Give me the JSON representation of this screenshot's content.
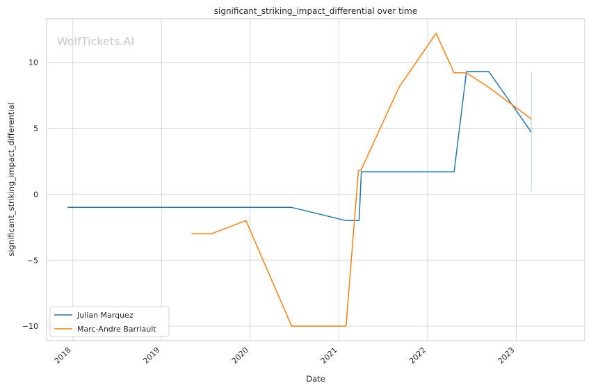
{
  "chart_data": {
    "type": "line",
    "title": "significant_striking_impact_differential over time",
    "xlabel": "Date",
    "ylabel": "significant_striking_impact_differential",
    "watermark": "WolfTickets.AI",
    "xlim": [
      "2017-09-15",
      "2023-10-10"
    ],
    "ylim": [
      -11.1,
      13.3
    ],
    "x_ticks": [
      "2018-01-01",
      "2019-01-01",
      "2020-01-01",
      "2021-01-01",
      "2022-01-01",
      "2023-01-01"
    ],
    "x_tick_labels": [
      "2018",
      "2019",
      "2020",
      "2021",
      "2022",
      "2023"
    ],
    "y_ticks": [
      -10,
      -5,
      0,
      5,
      10
    ],
    "y_tick_labels": [
      "−10",
      "−5",
      "0",
      "5",
      "10"
    ],
    "grid": true,
    "legend_position": "lower-left",
    "series": [
      {
        "name": "Julian Marquez",
        "color": "#1f77b4",
        "x": [
          "2017-12-10",
          "2020-06-20",
          "2021-01-30",
          "2021-03-25",
          "2021-04-03",
          "2022-04-20",
          "2022-06-10",
          "2022-09-10",
          "2023-03-04"
        ],
        "y": [
          -1.0,
          -1.0,
          -2.0,
          -2.0,
          1.7,
          1.7,
          9.3,
          9.3,
          4.7
        ]
      },
      {
        "name": "Marc-Andre Barriault",
        "color": "#ff7f0e",
        "x": [
          "2019-05-05",
          "2019-07-25",
          "2019-12-15",
          "2020-06-20",
          "2021-01-30",
          "2021-03-22",
          "2021-04-01",
          "2021-09-05",
          "2022-02-05",
          "2022-04-20",
          "2022-06-10",
          "2022-09-10",
          "2023-03-04"
        ],
        "y": [
          -3.0,
          -3.0,
          -2.0,
          -10.0,
          -10.0,
          1.8,
          1.8,
          8.1,
          12.2,
          9.2,
          9.2,
          8.1,
          5.7
        ]
      }
    ],
    "annotations": [
      {
        "type": "vertical-line",
        "x": "2023-03-04",
        "y_from": 0.2,
        "y_to": 9.3,
        "color": "#1f77b4",
        "opacity": 0.3
      }
    ]
  }
}
